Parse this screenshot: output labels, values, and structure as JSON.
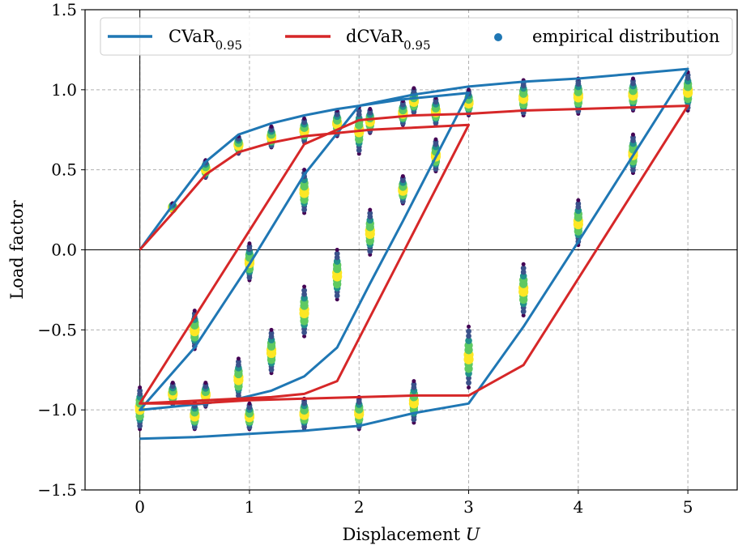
{
  "chart_data": {
    "type": "line",
    "xlabel": "Displacement",
    "xlabel_var": "U",
    "ylabel": "Load factor",
    "xlim": [
      -0.5,
      5.45
    ],
    "ylim": [
      -1.5,
      1.5
    ],
    "x_ticks": [
      0,
      1,
      2,
      3,
      4,
      5
    ],
    "x_tick_labels": [
      "0",
      "1",
      "2",
      "3",
      "4",
      "5"
    ],
    "y_ticks": [
      -1.5,
      -1.0,
      -0.5,
      0.0,
      0.5,
      1.0,
      1.5
    ],
    "y_tick_labels": [
      "−1.5",
      "−1.0",
      "−0.5",
      "0.0",
      "0.5",
      "1.0",
      "1.5"
    ],
    "grid": true,
    "legend_position": "top",
    "series": [
      {
        "name": "CVaR",
        "subscript": "0.95",
        "color": "#1f77b4",
        "x": [
          0,
          0.3,
          0.6,
          0.9,
          1.2,
          1.5,
          1.8,
          2.1,
          2.4,
          2.7,
          3.0,
          2.7,
          2.4,
          2.1,
          1.8,
          1.5,
          1.2,
          0.9,
          0.6,
          0.3,
          0.0,
          0.5,
          1.0,
          1.5,
          2.0,
          2.5,
          3.0,
          3.5,
          4.0,
          4.5,
          5.0,
          4.5,
          4.0,
          3.5,
          3.0,
          2.5,
          2.0,
          1.5,
          1.0,
          0.5,
          0.0
        ],
        "y": [
          0.0,
          0.28,
          0.55,
          0.72,
          0.79,
          0.84,
          0.88,
          0.91,
          0.94,
          0.96,
          0.98,
          0.58,
          0.18,
          -0.21,
          -0.61,
          -0.79,
          -0.88,
          -0.93,
          -0.96,
          -0.98,
          -1.0,
          -0.61,
          -0.09,
          0.47,
          0.9,
          0.97,
          1.02,
          1.05,
          1.07,
          1.1,
          1.13,
          0.59,
          0.05,
          -0.48,
          -0.96,
          -1.02,
          -1.1,
          -1.13,
          -1.15,
          -1.17,
          -1.18
        ]
      },
      {
        "name": "dCVaR",
        "subscript": "0.95",
        "color": "#d62728",
        "x": [
          0,
          0.3,
          0.6,
          0.9,
          1.2,
          1.5,
          1.8,
          2.1,
          2.4,
          2.7,
          3.0,
          2.7,
          2.4,
          2.1,
          1.8,
          1.5,
          1.2,
          0.9,
          0.6,
          0.3,
          0.0,
          0.5,
          1.0,
          1.5,
          2.0,
          2.5,
          3.0,
          3.5,
          4.0,
          4.5,
          5.0,
          4.5,
          4.0,
          3.5,
          3.0,
          2.5,
          2.0,
          1.5,
          1.0,
          0.5,
          0.0
        ],
        "y": [
          0.0,
          0.23,
          0.47,
          0.61,
          0.67,
          0.71,
          0.73,
          0.75,
          0.76,
          0.77,
          0.78,
          0.38,
          -0.02,
          -0.42,
          -0.82,
          -0.9,
          -0.92,
          -0.93,
          -0.94,
          -0.95,
          -0.96,
          -0.42,
          0.12,
          0.66,
          0.81,
          0.84,
          0.85,
          0.87,
          0.88,
          0.89,
          0.9,
          0.36,
          -0.18,
          -0.72,
          -0.91,
          -0.91,
          -0.92,
          -0.93,
          -0.94,
          -0.96,
          -0.96
        ]
      }
    ],
    "scatter": {
      "name": "empirical distribution",
      "legend_color": "#1f77b4",
      "colormap": [
        "#440154",
        "#3b528b",
        "#21918c",
        "#5ec962",
        "#fde725"
      ],
      "clusters": [
        {
          "x": 0.0,
          "ymin": -1.12,
          "ymax": -0.86
        },
        {
          "x": 0.3,
          "ymin": 0.24,
          "ymax": 0.29
        },
        {
          "x": 0.3,
          "ymin": -0.97,
          "ymax": -0.83
        },
        {
          "x": 0.5,
          "ymin": -0.62,
          "ymax": -0.38
        },
        {
          "x": 0.5,
          "ymin": -1.12,
          "ymax": -0.95
        },
        {
          "x": 0.6,
          "ymin": 0.45,
          "ymax": 0.56
        },
        {
          "x": 0.6,
          "ymin": -0.98,
          "ymax": -0.83
        },
        {
          "x": 0.9,
          "ymin": 0.6,
          "ymax": 0.71
        },
        {
          "x": 0.9,
          "ymin": -0.93,
          "ymax": -0.68
        },
        {
          "x": 1.0,
          "ymin": -0.19,
          "ymax": 0.04
        },
        {
          "x": 1.0,
          "ymin": -1.12,
          "ymax": -0.96
        },
        {
          "x": 1.2,
          "ymin": 0.64,
          "ymax": 0.77
        },
        {
          "x": 1.2,
          "ymin": -0.77,
          "ymax": -0.5
        },
        {
          "x": 1.5,
          "ymin": 0.23,
          "ymax": 0.5
        },
        {
          "x": 1.5,
          "ymin": 0.67,
          "ymax": 0.82
        },
        {
          "x": 1.5,
          "ymin": -0.54,
          "ymax": -0.23
        },
        {
          "x": 1.5,
          "ymin": -1.12,
          "ymax": -0.93
        },
        {
          "x": 1.8,
          "ymin": 0.71,
          "ymax": 0.87
        },
        {
          "x": 1.8,
          "ymin": -0.31,
          "ymax": 0.0
        },
        {
          "x": 2.0,
          "ymin": 0.6,
          "ymax": 0.89
        },
        {
          "x": 2.0,
          "ymin": -1.12,
          "ymax": -0.92
        },
        {
          "x": 2.1,
          "ymin": 0.73,
          "ymax": 0.88
        },
        {
          "x": 2.1,
          "ymin": -0.03,
          "ymax": 0.25
        },
        {
          "x": 2.4,
          "ymin": 0.29,
          "ymax": 0.46
        },
        {
          "x": 2.4,
          "ymin": 0.78,
          "ymax": 0.93
        },
        {
          "x": 2.5,
          "ymin": 0.85,
          "ymax": 1.01
        },
        {
          "x": 2.5,
          "ymin": -1.08,
          "ymax": -0.82
        },
        {
          "x": 2.7,
          "ymin": 0.49,
          "ymax": 0.69
        },
        {
          "x": 2.7,
          "ymin": 0.78,
          "ymax": 0.95
        },
        {
          "x": 3.0,
          "ymin": 0.84,
          "ymax": 1.0
        },
        {
          "x": 3.0,
          "ymin": -0.86,
          "ymax": -0.48
        },
        {
          "x": 3.5,
          "ymin": -0.41,
          "ymax": -0.09
        },
        {
          "x": 3.5,
          "ymin": 0.84,
          "ymax": 1.06
        },
        {
          "x": 4.0,
          "ymin": 0.03,
          "ymax": 0.31
        },
        {
          "x": 4.0,
          "ymin": 0.85,
          "ymax": 1.07
        },
        {
          "x": 4.5,
          "ymin": 0.48,
          "ymax": 0.72
        },
        {
          "x": 4.5,
          "ymin": 0.87,
          "ymax": 1.07
        },
        {
          "x": 5.0,
          "ymin": 0.87,
          "ymax": 1.11
        }
      ]
    }
  }
}
